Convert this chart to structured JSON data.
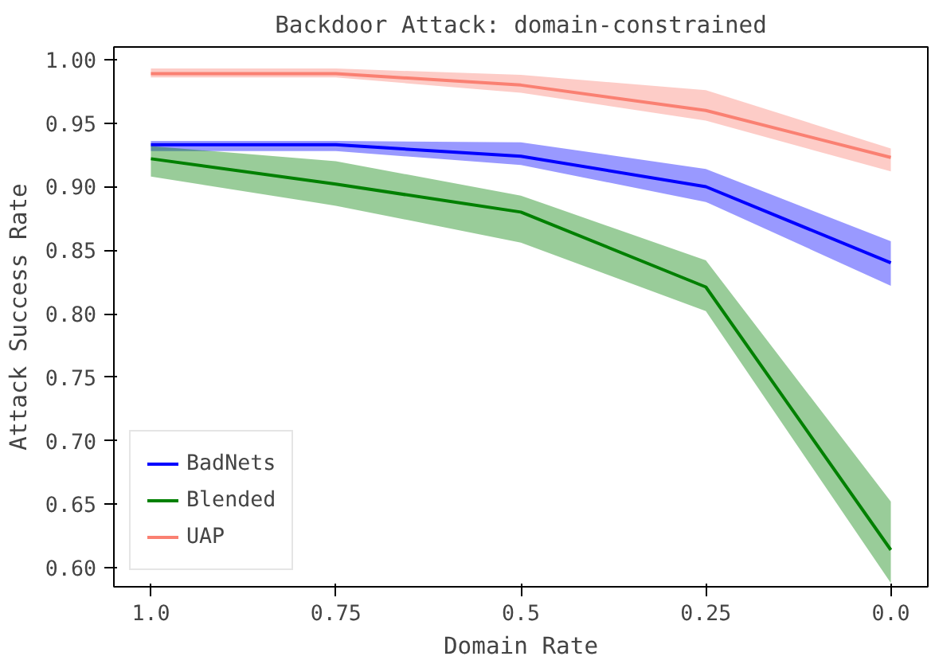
{
  "chart_data": {
    "type": "line",
    "title": "Backdoor Attack: domain-constrained",
    "xlabel": "Domain Rate",
    "ylabel": "Attack Success Rate",
    "categories": [
      "1.0",
      "0.75",
      "0.5",
      "0.25",
      "0.0"
    ],
    "series": [
      {
        "name": "BadNets",
        "color": "#0000ff",
        "values": [
          0.933,
          0.933,
          0.924,
          0.9,
          0.84
        ],
        "lower": [
          0.928,
          0.928,
          0.917,
          0.888,
          0.822
        ],
        "upper": [
          0.936,
          0.936,
          0.935,
          0.914,
          0.857
        ]
      },
      {
        "name": "Blended",
        "color": "#008000",
        "values": [
          0.922,
          0.902,
          0.88,
          0.821,
          0.614
        ],
        "lower": [
          0.908,
          0.885,
          0.856,
          0.802,
          0.588
        ],
        "upper": [
          0.932,
          0.92,
          0.893,
          0.842,
          0.652
        ]
      },
      {
        "name": "UAP",
        "color": "#fa8072",
        "values": [
          0.989,
          0.989,
          0.98,
          0.96,
          0.923
        ],
        "lower": [
          0.986,
          0.986,
          0.974,
          0.952,
          0.912
        ],
        "upper": [
          0.993,
          0.993,
          0.988,
          0.976,
          0.93
        ]
      }
    ],
    "ylim": [
      0.585,
      1.01
    ],
    "yticks": [
      {
        "value": 0.6,
        "label": "0.60"
      },
      {
        "value": 0.65,
        "label": "0.65"
      },
      {
        "value": 0.7,
        "label": "0.70"
      },
      {
        "value": 0.75,
        "label": "0.75"
      },
      {
        "value": 0.8,
        "label": "0.80"
      },
      {
        "value": 0.85,
        "label": "0.85"
      },
      {
        "value": 0.9,
        "label": "0.90"
      },
      {
        "value": 0.95,
        "label": "0.95"
      },
      {
        "value": 1.0,
        "label": "1.00"
      }
    ],
    "grid": false,
    "legend": "bottom left",
    "line_style": "solid",
    "marker": "none"
  }
}
